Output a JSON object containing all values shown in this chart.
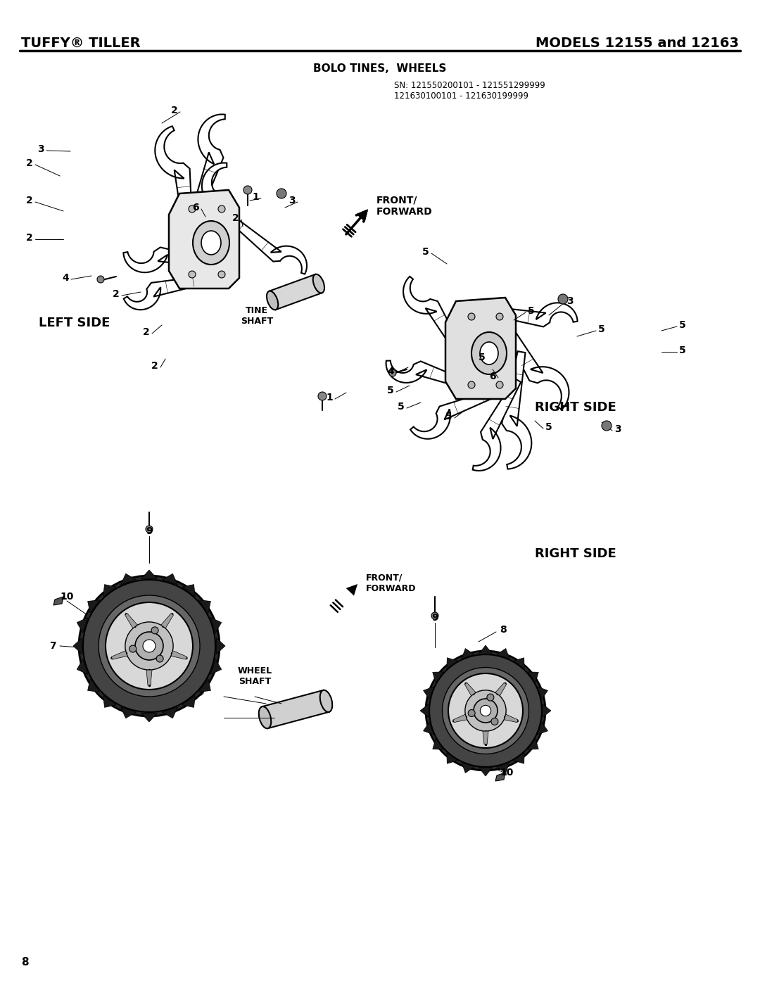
{
  "title_left": "TUFFY® TILLER",
  "title_right": "MODELS 12155 and 12163",
  "section_title": "BOLO TINES,  WHEELS",
  "sn_line1": "SN: 121550200101 - 121551299999",
  "sn_line2": "121630100101 - 121630199999",
  "left_side_label": "LEFT SIDE",
  "right_side_label": "RIGHT SIDE",
  "tine_shaft_label": "TINE\nSHAFT",
  "wheel_shaft_label": "WHEEL\nSHAFT",
  "front_forward_label1": "FRONT/\nFORWARD",
  "front_forward_label2": "FRONT/\nFORWARD",
  "page_number": "8",
  "bg_color": "#ffffff",
  "text_color": "#000000",
  "fig_width": 10.8,
  "fig_height": 13.97,
  "dpi": 100
}
